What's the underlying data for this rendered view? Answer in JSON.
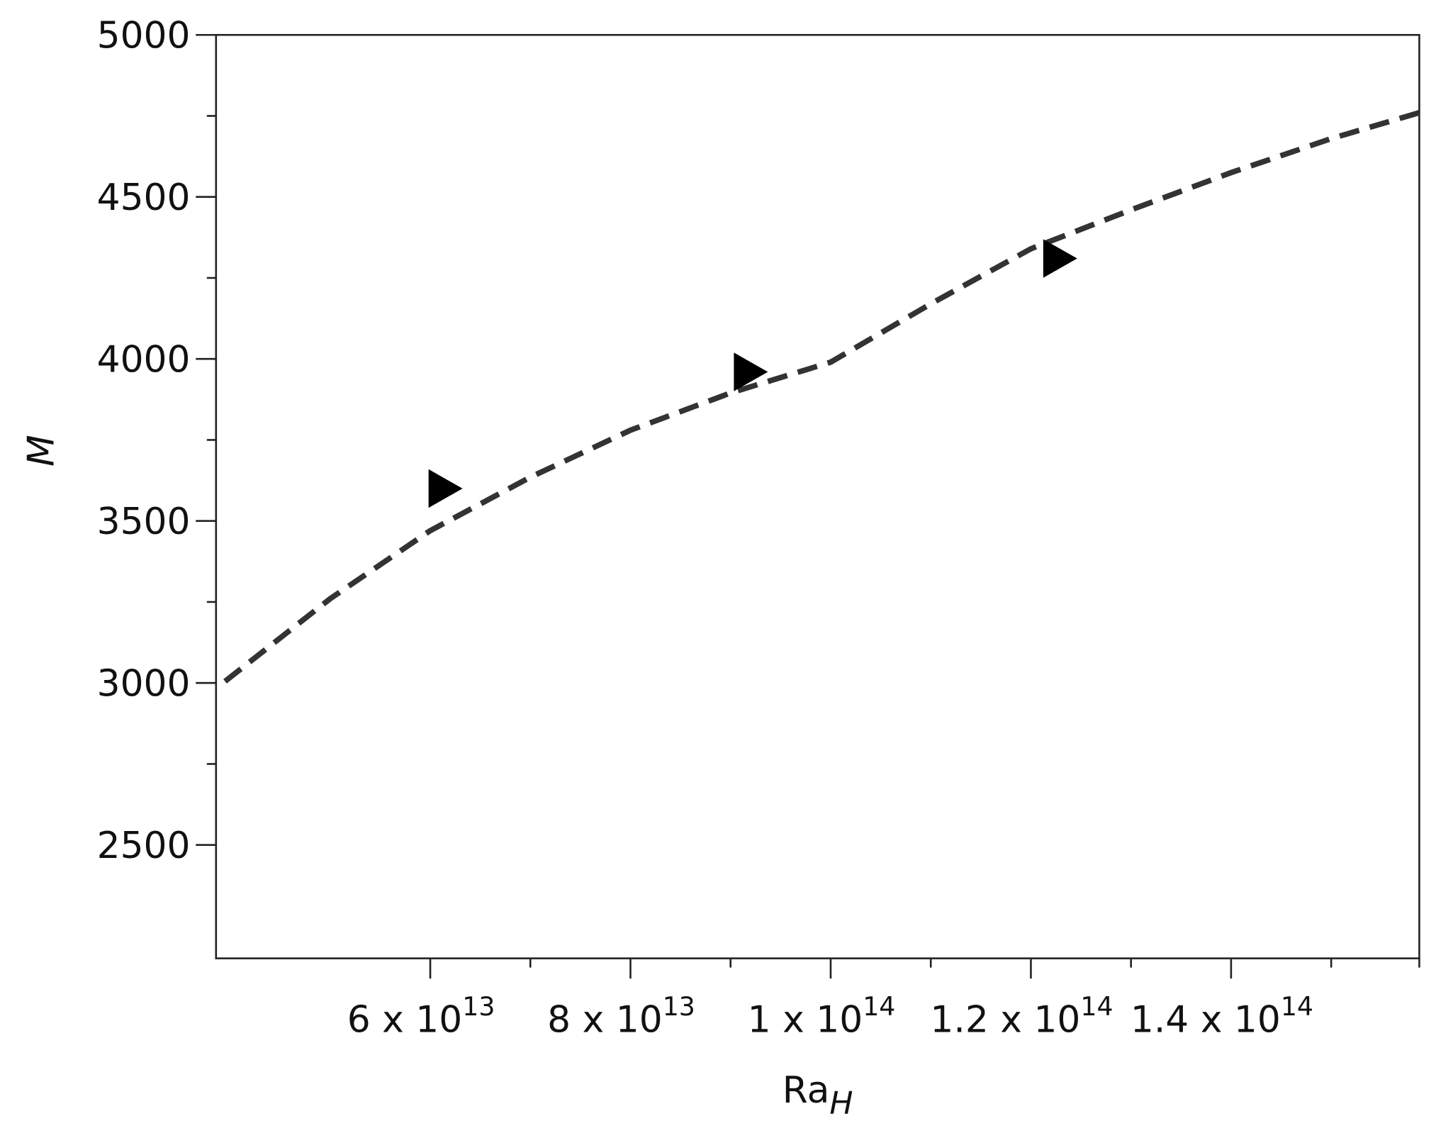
{
  "chart_data": {
    "type": "scatter",
    "x_label": {
      "text": "Ra",
      "sub": "H"
    },
    "y_label": "M",
    "xlim": [
      38600000000000,
      158800000000000
    ],
    "ylim": [
      2150,
      5000
    ],
    "xticks": [
      {
        "value": 60000000000000,
        "label": "6 x 10",
        "sup": "13"
      },
      {
        "value": 80000000000000,
        "label": "8 x 10",
        "sup": "13"
      },
      {
        "value": 100000000000000,
        "label": "1 x 10",
        "sup": "14"
      },
      {
        "value": 120000000000000,
        "label": "1.2 x 10",
        "sup": "14"
      },
      {
        "value": 140000000000000,
        "label": "1.4 x 10",
        "sup": "14"
      }
    ],
    "xminorticks": [
      70000000000000,
      90000000000000,
      110000000000000,
      130000000000000,
      150000000000000,
      158800000000000
    ],
    "yticks": [
      2500,
      3000,
      3500,
      4000,
      4500,
      5000
    ],
    "yminorticks": [
      2750,
      3250,
      3750,
      4250,
      4750
    ],
    "series": [
      {
        "kind": "line",
        "color": "#333333",
        "dashed": true,
        "x": [
          39500000000000,
          50000000000000,
          60000000000000,
          70000000000000,
          80000000000000,
          90000000000000,
          100000000000000,
          110000000000000,
          120000000000000,
          130000000000000,
          140000000000000,
          150000000000000,
          158800000000000
        ],
        "values": [
          3005,
          3260,
          3470,
          3635,
          3780,
          3895,
          3990,
          4170,
          4340,
          4460,
          4575,
          4680,
          4760
        ]
      },
      {
        "kind": "points",
        "color": "#000000",
        "marker": "triangle-right",
        "x": [
          61300000000000,
          91800000000000,
          122700000000000
        ],
        "values": [
          3600,
          3960,
          4310
        ]
      }
    ]
  }
}
